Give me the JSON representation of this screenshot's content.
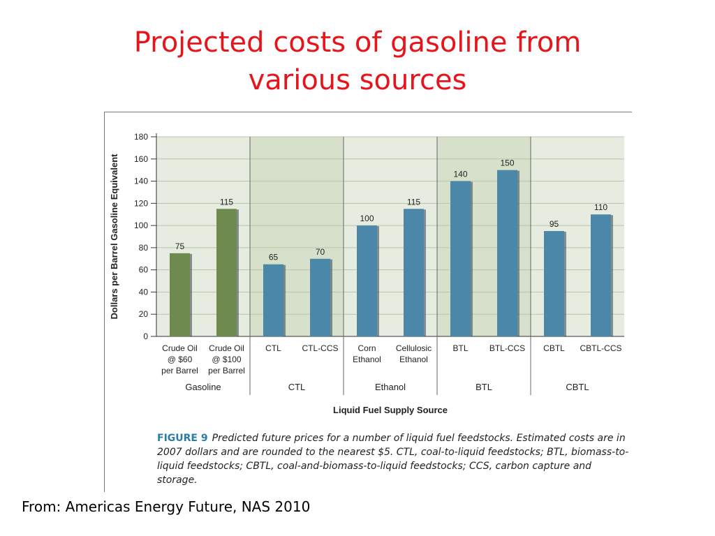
{
  "slide": {
    "title_line1": "Projected costs of gasoline from",
    "title_line2": "various sources",
    "source": "From: Americas Energy Future, NAS 2010"
  },
  "figure": {
    "label": "FIGURE 9",
    "caption": "Predicted future prices for a number of liquid fuel feedstocks. Estimated costs are in 2007 dollars and are rounded to the nearest $5. CTL, coal-to-liquid feedstocks; BTL, biomass-to-liquid feedstocks; CBTL, coal-and-biomass-to-liquid feedstocks; CCS, carbon capture and storage."
  },
  "colors": {
    "gasoline_bar": "#6e8a4e",
    "other_bar": "#4b87a8",
    "plot_bg": "#e6ecdf",
    "plot_bg_shaded": "#d6e0cb",
    "caption_label": "#2b7ca5"
  },
  "chart_data": {
    "type": "bar",
    "title": "",
    "xlabel": "Liquid Fuel Supply Source",
    "ylabel": "Dollars per Barrel Gasoline Equivalent",
    "ylim": [
      0,
      180
    ],
    "yticks": [
      0,
      20,
      40,
      60,
      80,
      100,
      120,
      140,
      160,
      180
    ],
    "grid": true,
    "categories": [
      [
        "Crude Oil",
        "@ $60",
        "per Barrel"
      ],
      [
        "Crude Oil",
        "@ $100",
        "per Barrel"
      ],
      [
        "CTL"
      ],
      [
        "CTL-CCS"
      ],
      [
        "Corn",
        "Ethanol"
      ],
      [
        "Cellulosic",
        "Ethanol"
      ],
      [
        "BTL"
      ],
      [
        "BTL-CCS"
      ],
      [
        "CBTL"
      ],
      [
        "CBTL-CCS"
      ]
    ],
    "values": [
      75,
      115,
      65,
      70,
      100,
      115,
      140,
      150,
      95,
      110
    ],
    "groups": [
      {
        "name": "Gasoline",
        "span": [
          0,
          1
        ],
        "color": "#6e8a4e"
      },
      {
        "name": "CTL",
        "span": [
          2,
          3
        ],
        "color": "#4b87a8"
      },
      {
        "name": "Ethanol",
        "span": [
          4,
          5
        ],
        "color": "#4b87a8"
      },
      {
        "name": "BTL",
        "span": [
          6,
          7
        ],
        "color": "#4b87a8"
      },
      {
        "name": "CBTL",
        "span": [
          8,
          9
        ],
        "color": "#4b87a8"
      }
    ]
  }
}
